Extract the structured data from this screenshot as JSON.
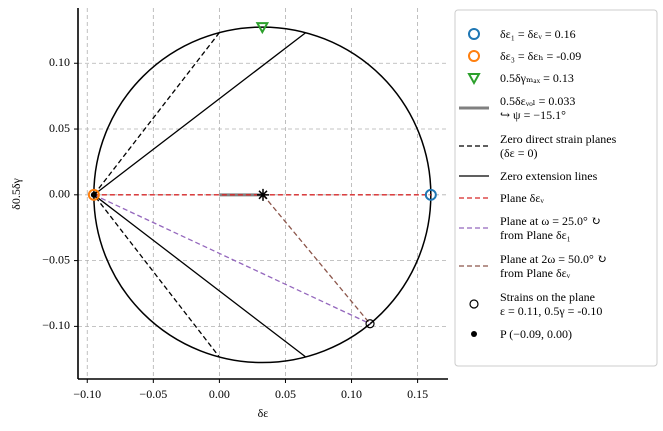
{
  "chart_data": {
    "type": "mohr",
    "xlabel": "δε",
    "ylabel": "δ0.5δγ",
    "xlim": [
      -0.107,
      0.173
    ],
    "ylim": [
      -0.14,
      0.142
    ],
    "xticks": [
      {
        "value": -0.1,
        "label": "−0.10"
      },
      {
        "value": -0.05,
        "label": "−0.05"
      },
      {
        "value": 0,
        "label": "0.00"
      },
      {
        "value": 0.05,
        "label": "0.05"
      },
      {
        "value": 0.1,
        "label": "0.10"
      },
      {
        "value": 0.15,
        "label": "0.15"
      }
    ],
    "yticks": [
      {
        "value": -0.1,
        "label": "−0.10"
      },
      {
        "value": -0.05,
        "label": "−0.05"
      },
      {
        "value": 0,
        "label": "0.00"
      },
      {
        "value": 0.05,
        "label": "0.05"
      },
      {
        "value": 0.1,
        "label": "0.10"
      }
    ],
    "grid": true,
    "circle": {
      "center_x": 0.0325,
      "center_y": 0,
      "radius": 0.1275,
      "color": "#000000"
    },
    "center_marker": {
      "x": 0.033,
      "y": 0,
      "color": "#000000"
    },
    "series": [
      {
        "name": "δε₁ = δεᵥ = 0.16",
        "color": "#1f77b4",
        "marker": "open-circle",
        "x": [
          0.16
        ],
        "y": [
          0
        ]
      },
      {
        "name": "δε₃ = δεₕ = -0.09",
        "color": "#ff7f0e",
        "marker": "open-circle",
        "x": [
          -0.095
        ],
        "y": [
          0
        ]
      },
      {
        "name": "0.5δγₘₐₓ = 0.13",
        "color": "#2ca02c",
        "marker": "triangle-down",
        "x": [
          0.0325
        ],
        "y": [
          0.1275
        ]
      },
      {
        "name": "0.5δεᵥₒₗ = 0.033\n↪ ψ = −15.1°",
        "color": "#808080",
        "line": "thick",
        "x": [
          0,
          0.033
        ],
        "y": [
          0,
          0
        ]
      },
      {
        "name": "Zero direct strain planes\n(δε = 0)",
        "color": "#000000",
        "line": "dashed",
        "x": [
          0,
          -0.095,
          0
        ],
        "y": [
          0.1233,
          0,
          -0.1233
        ]
      },
      {
        "name": "Zero extension lines",
        "color": "#000000",
        "line": "solid",
        "x": [
          0.065,
          -0.095,
          0.065
        ],
        "y": [
          0.123,
          0,
          -0.123
        ]
      },
      {
        "name": "Plane δεᵥ",
        "color": "#d62728",
        "line": "dashed",
        "x": [
          -0.095,
          0.16
        ],
        "y": [
          0,
          0
        ]
      },
      {
        "name": "Plane at ω = 25.0° ↻\nfrom Plane δε₁",
        "color": "#9467bd",
        "line": "dashed",
        "x": [
          -0.095,
          0.114
        ],
        "y": [
          0,
          -0.098
        ]
      },
      {
        "name": "Plane at 2ω = 50.0° ↻\nfrom Plane δεᵥ",
        "color": "#8c564b",
        "line": "dashed",
        "x": [
          0.033,
          0.114
        ],
        "y": [
          0,
          -0.098
        ]
      },
      {
        "name": "Strains on the plane\nε = 0.11, 0.5γ = -0.10",
        "color": "#000000",
        "marker": "open-circle-small",
        "x": [
          0.114
        ],
        "y": [
          -0.098
        ]
      },
      {
        "name": "P (−0.09, 0.00)",
        "color": "#000000",
        "marker": "dot",
        "x": [
          -0.095
        ],
        "y": [
          0
        ]
      }
    ]
  }
}
